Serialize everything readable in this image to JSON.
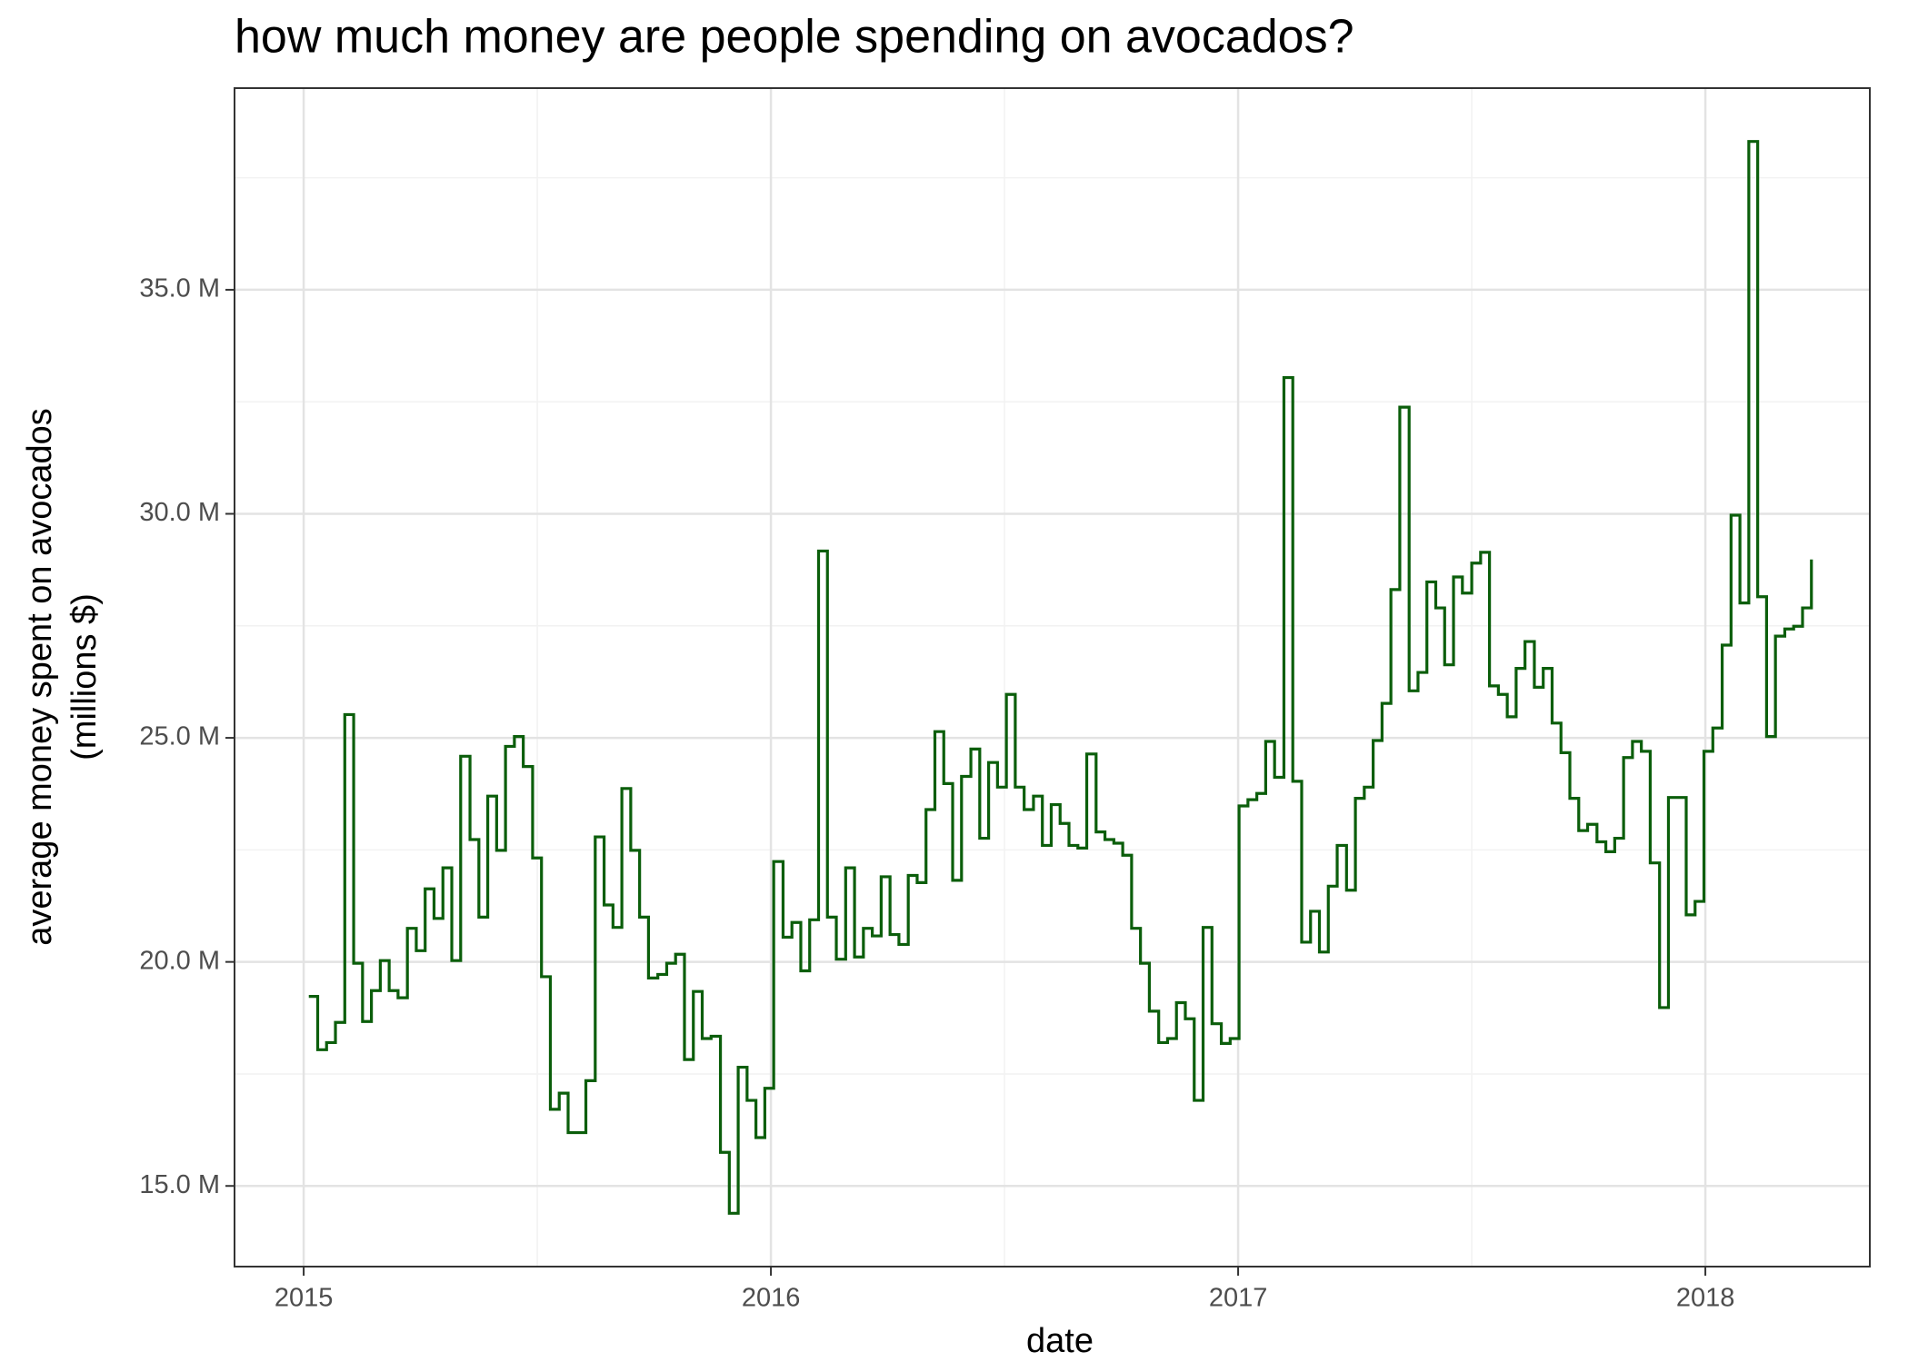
{
  "chart_data": {
    "type": "step",
    "title": "how much money are people spending on avocados?",
    "xlabel": "date",
    "ylabel": [
      "average money spent on avocados",
      "(millions $)"
    ],
    "xlim": [
      2014.852,
      2018.352
    ],
    "xticks": [
      2015,
      2016,
      2017,
      2018
    ],
    "minor_xticks": [
      2015.5,
      2016.5,
      2017.5
    ],
    "ylim": [
      13.2,
      39.5
    ],
    "yticks": [
      {
        "value": 15,
        "label": "15.0 M"
      },
      {
        "value": 20,
        "label": "20.0 M"
      },
      {
        "value": 25,
        "label": "25.0 M"
      },
      {
        "value": 30,
        "label": "30.0 M"
      },
      {
        "value": 35,
        "label": "35.0 M"
      }
    ],
    "minor_yticks": [
      17.5,
      22.5,
      27.5,
      32.5,
      37.5
    ],
    "grid": true,
    "color": "#0b5e0b",
    "x": [
      2015.011,
      2015.03,
      2015.049,
      2015.068,
      2015.088,
      2015.107,
      2015.126,
      2015.145,
      2015.164,
      2015.183,
      2015.202,
      2015.222,
      2015.241,
      2015.26,
      2015.279,
      2015.298,
      2015.317,
      2015.336,
      2015.356,
      2015.375,
      2015.394,
      2015.413,
      2015.432,
      2015.451,
      2015.47,
      2015.49,
      2015.509,
      2015.528,
      2015.547,
      2015.566,
      2015.585,
      2015.604,
      2015.624,
      2015.643,
      2015.662,
      2015.681,
      2015.7,
      2015.719,
      2015.738,
      2015.758,
      2015.777,
      2015.796,
      2015.815,
      2015.834,
      2015.853,
      2015.872,
      2015.892,
      2015.911,
      2015.93,
      2015.949,
      2015.968,
      2015.987,
      2016.006,
      2016.026,
      2016.045,
      2016.064,
      2016.083,
      2016.102,
      2016.121,
      2016.14,
      2016.16,
      2016.179,
      2016.198,
      2016.217,
      2016.236,
      2016.255,
      2016.274,
      2016.294,
      2016.313,
      2016.332,
      2016.351,
      2016.37,
      2016.389,
      2016.408,
      2016.428,
      2016.447,
      2016.466,
      2016.485,
      2016.504,
      2016.523,
      2016.542,
      2016.562,
      2016.581,
      2016.6,
      2016.619,
      2016.638,
      2016.657,
      2016.676,
      2016.696,
      2016.715,
      2016.734,
      2016.753,
      2016.772,
      2016.791,
      2016.81,
      2016.83,
      2016.849,
      2016.868,
      2016.887,
      2016.906,
      2016.925,
      2016.944,
      2016.964,
      2016.983,
      2017.002,
      2017.021,
      2017.04,
      2017.059,
      2017.078,
      2017.098,
      2017.117,
      2017.136,
      2017.155,
      2017.174,
      2017.193,
      2017.212,
      2017.232,
      2017.251,
      2017.27,
      2017.289,
      2017.308,
      2017.327,
      2017.346,
      2017.366,
      2017.385,
      2017.404,
      2017.423,
      2017.442,
      2017.461,
      2017.48,
      2017.5,
      2017.519,
      2017.538,
      2017.557,
      2017.576,
      2017.595,
      2017.614,
      2017.634,
      2017.653,
      2017.672,
      2017.691,
      2017.71,
      2017.729,
      2017.748,
      2017.768,
      2017.787,
      2017.806,
      2017.825,
      2017.844,
      2017.863,
      2017.882,
      2017.902,
      2017.921,
      2017.94,
      2017.959,
      2017.978,
      2017.997,
      2018.016,
      2018.036,
      2018.055,
      2018.074,
      2018.093,
      2018.112,
      2018.131,
      2018.15,
      2018.17,
      2018.189,
      2018.208,
      2018.227
    ],
    "values": [
      19.23,
      18.04,
      18.2,
      18.65,
      25.52,
      19.97,
      18.67,
      19.36,
      20.03,
      19.36,
      19.2,
      20.75,
      20.25,
      21.63,
      20.97,
      22.1,
      20.03,
      24.59,
      22.73,
      21.0,
      23.7,
      22.49,
      24.81,
      25.03,
      24.36,
      22.32,
      19.67,
      16.71,
      17.07,
      16.19,
      16.19,
      17.35,
      22.79,
      21.27,
      20.77,
      23.87,
      22.49,
      21.0,
      19.64,
      19.72,
      19.97,
      20.17,
      17.82,
      19.34,
      18.29,
      18.34,
      15.75,
      14.39,
      17.65,
      16.91,
      16.08,
      17.18,
      22.24,
      20.55,
      20.88,
      19.8,
      20.94,
      29.17,
      21.0,
      20.06,
      22.1,
      20.11,
      20.75,
      20.58,
      21.9,
      20.61,
      20.39,
      21.93,
      21.77,
      23.4,
      25.14,
      23.98,
      21.82,
      24.14,
      24.75,
      22.76,
      24.45,
      23.9,
      25.97,
      23.9,
      23.4,
      23.7,
      22.6,
      23.51,
      23.09,
      22.6,
      22.54,
      24.64,
      22.9,
      22.73,
      22.65,
      22.38,
      20.75,
      19.97,
      18.9,
      18.2,
      18.29,
      19.09,
      18.73,
      16.91,
      20.77,
      18.62,
      18.18,
      18.29,
      23.48,
      23.62,
      23.76,
      24.92,
      24.12,
      33.04,
      24.03,
      20.44,
      21.13,
      20.22,
      21.69,
      22.6,
      21.6,
      23.65,
      23.9,
      24.94,
      25.77,
      28.31,
      32.38,
      26.05,
      26.46,
      28.48,
      27.9,
      26.63,
      28.59,
      28.23,
      28.9,
      29.14,
      26.16,
      25.97,
      25.47,
      26.55,
      27.15,
      26.13,
      26.55,
      25.33,
      24.67,
      23.65,
      22.93,
      23.07,
      22.68,
      22.46,
      22.76,
      24.56,
      24.92,
      24.7,
      22.21,
      18.98,
      23.67,
      23.67,
      21.05,
      21.35,
      24.7,
      25.22,
      27.07,
      29.97,
      28.01,
      38.31,
      28.15,
      25.03,
      27.27,
      27.43,
      27.49,
      27.9,
      28.98
    ]
  }
}
